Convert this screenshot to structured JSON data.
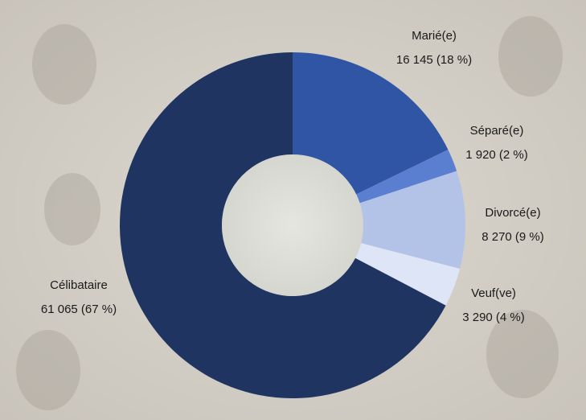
{
  "chart_data": {
    "type": "donut",
    "categories": [
      "Marié(e)",
      "Séparé(e)",
      "Divorcé(e)",
      "Veuf(ve)",
      "Célibataire"
    ],
    "values": [
      16145,
      1920,
      8270,
      3290,
      61065
    ],
    "value_labels": [
      "16 145 (18 %)",
      "1 920 (2 %)",
      "8 270 (9 %)",
      "3 290 (4 %)",
      "61 065 (67 %)"
    ],
    "colors": [
      "#2f55a4",
      "#5b7fd0",
      "#b3c3e8",
      "#dde5f7",
      "#1f3460"
    ]
  }
}
